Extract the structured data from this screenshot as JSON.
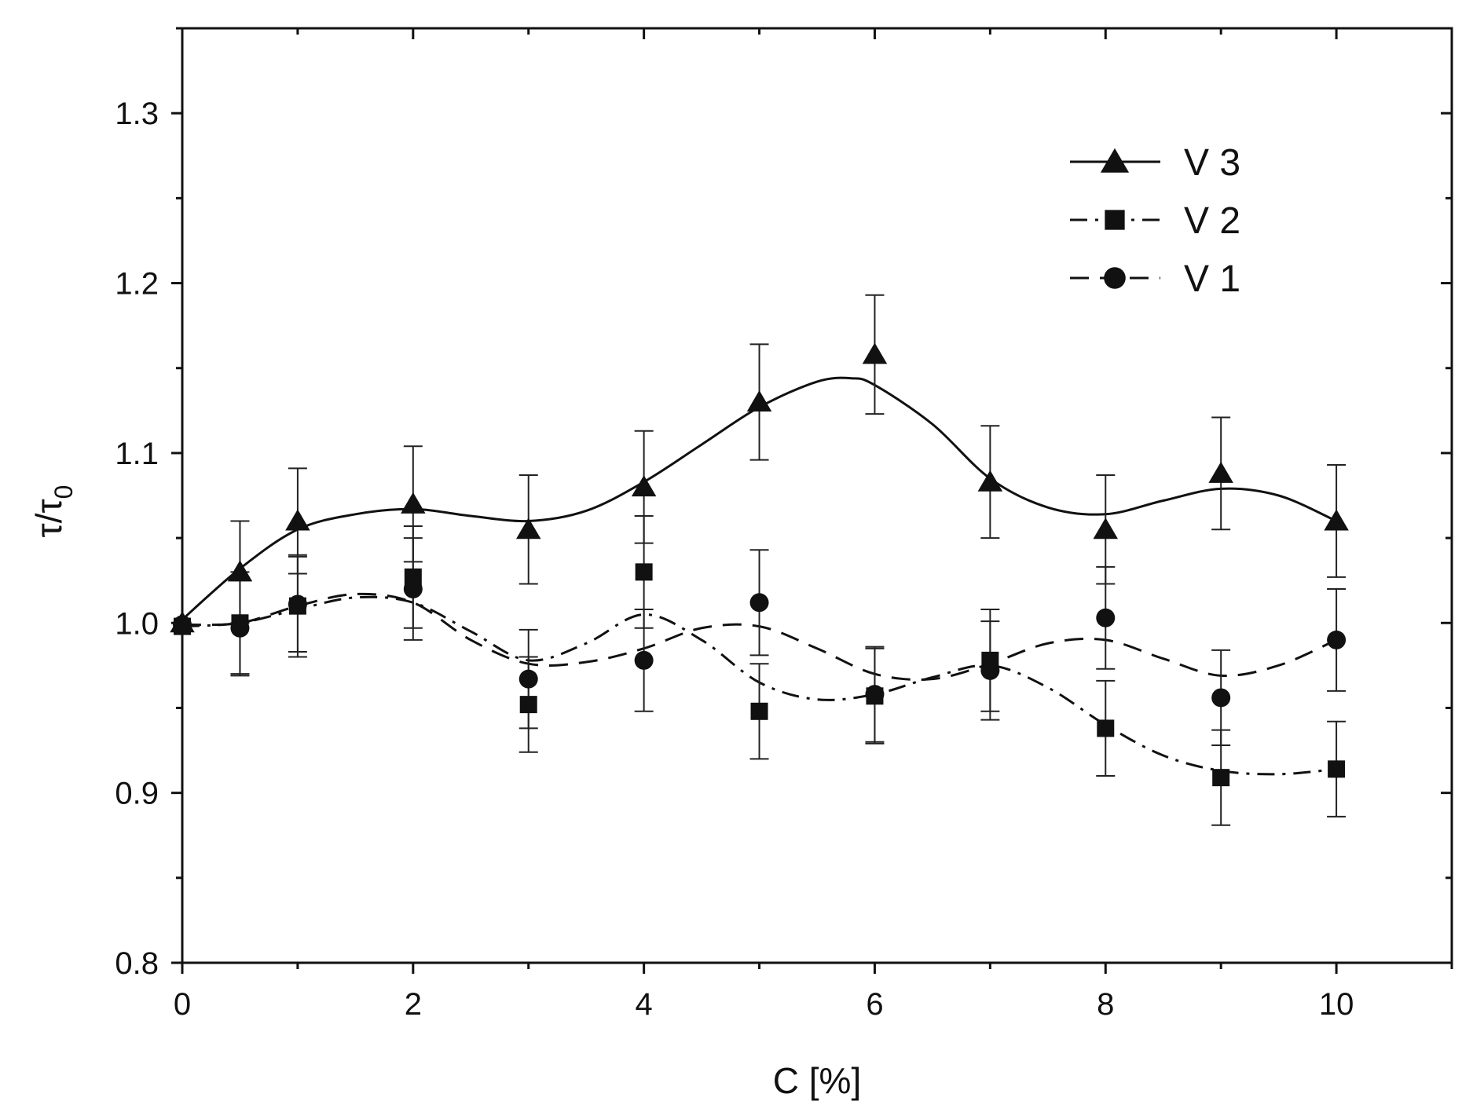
{
  "chart_data": {
    "type": "scatter",
    "title": "",
    "xlabel": "C [%]",
    "ylabel": "τ/τ",
    "ylabel_subscript": "0",
    "xlim": [
      0,
      11
    ],
    "ylim": [
      0.8,
      1.35
    ],
    "x_ticks": [
      0,
      2,
      4,
      6,
      8,
      10
    ],
    "x_tick_labels": [
      "0",
      "2",
      "4",
      "6",
      "8",
      "10"
    ],
    "y_ticks": [
      0.8,
      0.9,
      1.0,
      1.1,
      1.2,
      1.3
    ],
    "y_tick_labels": [
      "0.8",
      "0.9",
      "1.0",
      "1.1",
      "1.2",
      "1.3"
    ],
    "grid": false,
    "legend_position": "top-right",
    "series": [
      {
        "name": "V 3",
        "marker": "triangle",
        "line_style": "solid",
        "x": [
          0,
          0.5,
          1,
          2,
          3,
          4,
          5,
          6,
          7,
          8,
          9,
          10
        ],
        "y": [
          1.0,
          1.03,
          1.06,
          1.07,
          1.055,
          1.08,
          1.13,
          1.158,
          1.083,
          1.055,
          1.088,
          1.06
        ],
        "err": [
          0.0,
          0.03,
          0.031,
          0.034,
          0.032,
          0.033,
          0.034,
          0.035,
          0.033,
          0.032,
          0.033,
          0.033
        ],
        "curve": [
          [
            0,
            1.002
          ],
          [
            0.5,
            1.032
          ],
          [
            1,
            1.055
          ],
          [
            1.5,
            1.064
          ],
          [
            2,
            1.067
          ],
          [
            2.5,
            1.063
          ],
          [
            3,
            1.06
          ],
          [
            3.5,
            1.066
          ],
          [
            4,
            1.083
          ],
          [
            4.5,
            1.105
          ],
          [
            5,
            1.127
          ],
          [
            5.5,
            1.142
          ],
          [
            5.8,
            1.144
          ],
          [
            6,
            1.14
          ],
          [
            6.5,
            1.117
          ],
          [
            7,
            1.085
          ],
          [
            7.5,
            1.068
          ],
          [
            8,
            1.064
          ],
          [
            8.5,
            1.072
          ],
          [
            9,
            1.079
          ],
          [
            9.5,
            1.075
          ],
          [
            10,
            1.06
          ]
        ]
      },
      {
        "name": "V 2",
        "marker": "square",
        "line_style": "dash-dot",
        "x": [
          0,
          0.5,
          1,
          2,
          3,
          4,
          5,
          6,
          7,
          8,
          9,
          10
        ],
        "y": [
          0.998,
          1.0,
          1.01,
          1.027,
          0.952,
          1.03,
          0.948,
          0.957,
          0.978,
          0.938,
          0.909,
          0.914
        ],
        "err": [
          0.0,
          0.03,
          0.03,
          0.03,
          0.028,
          0.033,
          0.028,
          0.028,
          0.03,
          0.028,
          0.028,
          0.028
        ],
        "curve": [
          [
            0,
            0.998
          ],
          [
            0.5,
            1.0
          ],
          [
            1,
            1.008
          ],
          [
            1.5,
            1.015
          ],
          [
            2,
            1.012
          ],
          [
            2.5,
            0.995
          ],
          [
            3,
            0.978
          ],
          [
            3.5,
            0.988
          ],
          [
            4,
            1.005
          ],
          [
            4.5,
            0.99
          ],
          [
            5,
            0.965
          ],
          [
            5.5,
            0.955
          ],
          [
            6,
            0.958
          ],
          [
            6.5,
            0.968
          ],
          [
            7,
            0.975
          ],
          [
            7.5,
            0.962
          ],
          [
            8,
            0.94
          ],
          [
            8.5,
            0.922
          ],
          [
            9,
            0.913
          ],
          [
            9.5,
            0.911
          ],
          [
            10,
            0.914
          ]
        ]
      },
      {
        "name": "V 1",
        "marker": "circle",
        "line_style": "dashed",
        "x": [
          0,
          0.5,
          1,
          2,
          3,
          4,
          5,
          6,
          7,
          8,
          9,
          10
        ],
        "y": [
          0.999,
          0.997,
          1.011,
          1.02,
          0.967,
          0.978,
          1.012,
          0.958,
          0.972,
          1.003,
          0.956,
          0.99
        ],
        "err": [
          0.0,
          0.028,
          0.028,
          0.03,
          0.029,
          0.03,
          0.031,
          0.028,
          0.029,
          0.03,
          0.028,
          0.03
        ],
        "curve": [
          [
            0,
            0.999
          ],
          [
            0.5,
            1.0
          ],
          [
            1,
            1.01
          ],
          [
            1.5,
            1.017
          ],
          [
            2,
            1.012
          ],
          [
            2.5,
            0.99
          ],
          [
            3,
            0.976
          ],
          [
            3.5,
            0.977
          ],
          [
            4,
            0.985
          ],
          [
            4.5,
            0.997
          ],
          [
            5,
            0.998
          ],
          [
            5.5,
            0.985
          ],
          [
            6,
            0.97
          ],
          [
            6.5,
            0.967
          ],
          [
            7,
            0.976
          ],
          [
            7.5,
            0.988
          ],
          [
            8,
            0.99
          ],
          [
            8.5,
            0.979
          ],
          [
            9,
            0.969
          ],
          [
            9.5,
            0.975
          ],
          [
            10,
            0.99
          ]
        ]
      }
    ]
  }
}
